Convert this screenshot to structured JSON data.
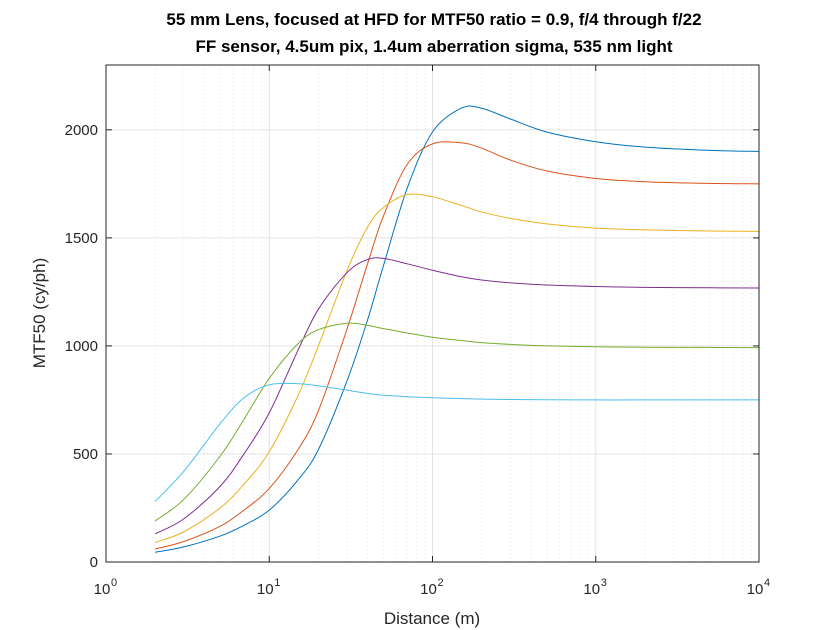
{
  "chart_data": {
    "type": "line",
    "title": "55 mm Lens, focused at HFD for MTF50 ratio = 0.9, f/4 through f/22",
    "subtitle": "FF sensor, 4.5um pix, 1.4um aberration sigma, 535 nm light",
    "xlabel": "Distance (m)",
    "ylabel": "MTF50 (cy/ph)",
    "x_scale": "log",
    "xlim": [
      1,
      10000
    ],
    "ylim": [
      0,
      2300
    ],
    "grid": true,
    "minor_grid_x": true,
    "x_tick_labels": [
      {
        "base": "10",
        "exp": "0"
      },
      {
        "base": "10",
        "exp": "1"
      },
      {
        "base": "10",
        "exp": "2"
      },
      {
        "base": "10",
        "exp": "3"
      },
      {
        "base": "10",
        "exp": "4"
      }
    ],
    "y_ticks": [
      0,
      500,
      1000,
      1500,
      2000
    ],
    "x": [
      2,
      3,
      5,
      7,
      10,
      15,
      20,
      30,
      40,
      50,
      70,
      100,
      150,
      200,
      300,
      500,
      1000,
      2000,
      5000,
      10000
    ],
    "series": [
      {
        "color": "#0072BD",
        "values": [
          45,
          70,
          120,
          170,
          240,
          380,
          520,
          840,
          1120,
          1370,
          1730,
          1990,
          2100,
          2100,
          2050,
          1990,
          1945,
          1920,
          1905,
          1900
        ]
      },
      {
        "color": "#D95319",
        "values": [
          60,
          95,
          165,
          240,
          340,
          520,
          700,
          1080,
          1380,
          1600,
          1840,
          1935,
          1940,
          1915,
          1860,
          1810,
          1775,
          1760,
          1752,
          1750
        ]
      },
      {
        "color": "#EDB120",
        "values": [
          90,
          140,
          250,
          360,
          510,
          770,
          1000,
          1350,
          1550,
          1640,
          1700,
          1690,
          1650,
          1620,
          1590,
          1565,
          1545,
          1537,
          1532,
          1530
        ]
      },
      {
        "color": "#7E2F8E",
        "values": [
          130,
          200,
          350,
          500,
          690,
          980,
          1170,
          1340,
          1400,
          1405,
          1380,
          1350,
          1320,
          1305,
          1292,
          1282,
          1275,
          1271,
          1269,
          1268
        ]
      },
      {
        "color": "#77AC30",
        "values": [
          190,
          290,
          490,
          660,
          850,
          1010,
          1075,
          1105,
          1095,
          1080,
          1060,
          1040,
          1025,
          1015,
          1007,
          1000,
          996,
          994,
          993,
          992
        ]
      },
      {
        "color": "#4DBEEE",
        "values": [
          280,
          420,
          640,
          760,
          820,
          825,
          815,
          795,
          780,
          772,
          765,
          760,
          756,
          754,
          752,
          751,
          750,
          750,
          750,
          750
        ]
      }
    ]
  }
}
